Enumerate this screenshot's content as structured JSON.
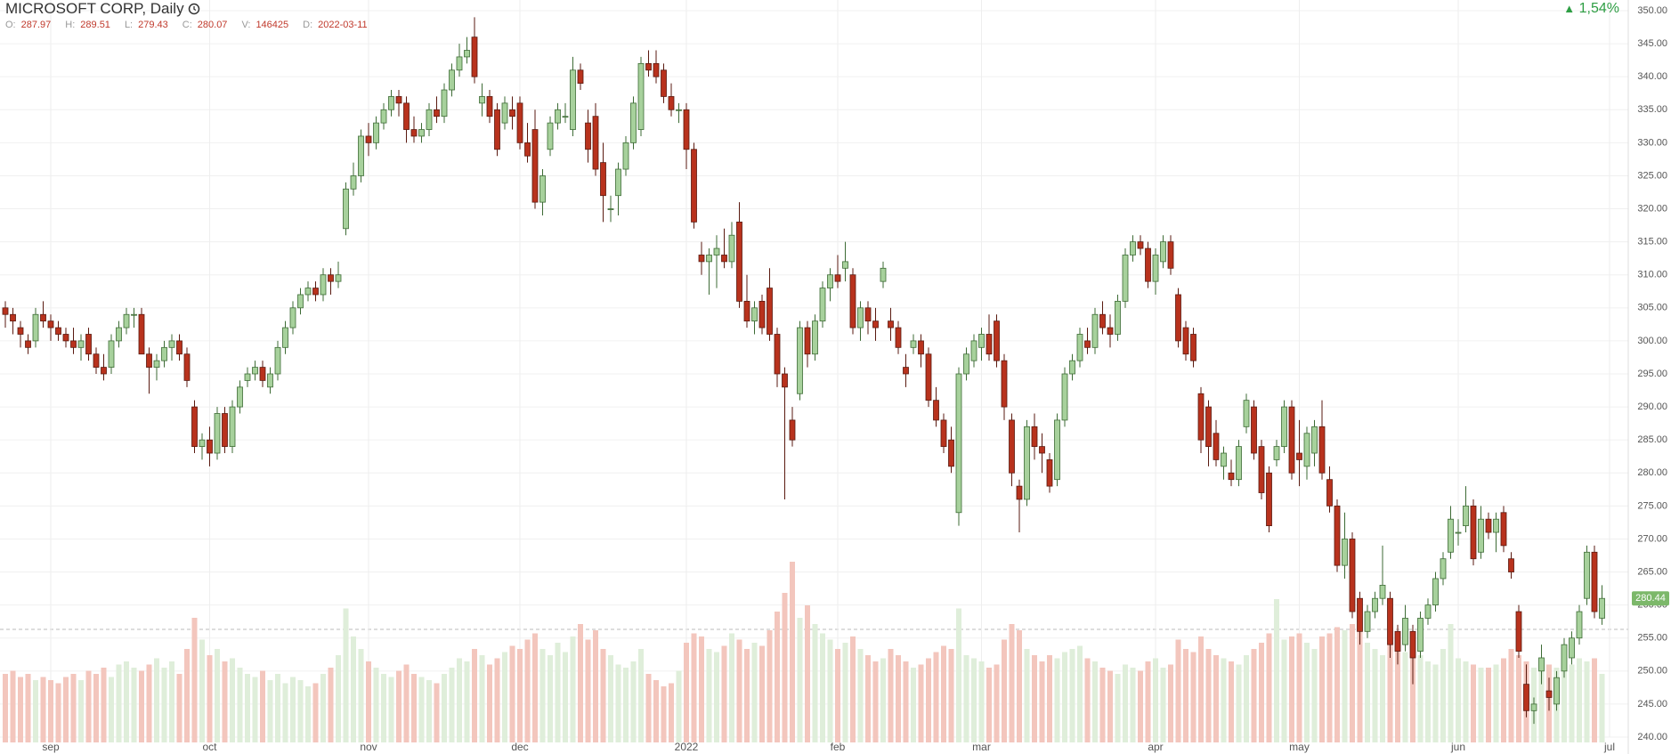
{
  "header": {
    "title": "MICROSOFT CORP, Daily",
    "fields": [
      {
        "label": "O:",
        "value": 287.97
      },
      {
        "label": "H:",
        "value": 289.51
      },
      {
        "label": "L:",
        "value": 279.43
      },
      {
        "label": "C:",
        "value": 280.07
      },
      {
        "label": "V:",
        "value": 146425
      },
      {
        "label": "D:",
        "value": "2022-03-11"
      }
    ],
    "change": "1,54%"
  },
  "chart_data": {
    "type": "candlestick",
    "up_color": "#a7d19c",
    "down_color": "#b8321d",
    "up_volume_color": "#dfeeda",
    "down_volume_color": "#f3c6bd",
    "grid": true,
    "last_price_label": 280.44,
    "ylim": [
      240,
      350
    ],
    "yticks": [
      {
        "value": 240,
        "label": "240.00"
      },
      {
        "value": 245,
        "label": "245.00"
      },
      {
        "value": 250,
        "label": "250.00"
      },
      {
        "value": 255,
        "label": "255.00"
      },
      {
        "value": 260,
        "label": "260.00"
      },
      {
        "value": 265,
        "label": "265.00"
      },
      {
        "value": 270,
        "label": "270.00"
      },
      {
        "value": 275,
        "label": "275.00"
      },
      {
        "value": 280,
        "label": "280.00"
      },
      {
        "value": 285,
        "label": "285.00"
      },
      {
        "value": 290,
        "label": "290.00"
      },
      {
        "value": 295,
        "label": "295.00"
      },
      {
        "value": 300,
        "label": "300.00"
      },
      {
        "value": 305,
        "label": "305.00"
      },
      {
        "value": 310,
        "label": "310.00"
      },
      {
        "value": 315,
        "label": "315.00"
      },
      {
        "value": 320,
        "label": "320.00"
      },
      {
        "value": 325,
        "label": "325.00"
      },
      {
        "value": 330,
        "label": "330.00"
      },
      {
        "value": 335,
        "label": "335.00"
      },
      {
        "value": 340,
        "label": "340.00"
      },
      {
        "value": 345,
        "label": "345.00"
      },
      {
        "value": 350,
        "label": "350.00"
      }
    ],
    "xticks": [
      {
        "value": 6,
        "label": "sep"
      },
      {
        "value": 27,
        "label": "oct"
      },
      {
        "value": 48,
        "label": "nov"
      },
      {
        "value": 68,
        "label": "dec"
      },
      {
        "value": 90,
        "label": "2022"
      },
      {
        "value": 110,
        "label": "feb"
      },
      {
        "value": 129,
        "label": "mar"
      },
      {
        "value": 152,
        "label": "apr"
      },
      {
        "value": 171,
        "label": "may"
      },
      {
        "value": 192,
        "label": "jun"
      },
      {
        "value": 212,
        "label": "jul"
      }
    ],
    "ohlc": [
      [
        305,
        306,
        302,
        304
      ],
      [
        304,
        305,
        301,
        303
      ],
      [
        302,
        303,
        299,
        301
      ],
      [
        300,
        301,
        298,
        299
      ],
      [
        300,
        305,
        299,
        304
      ],
      [
        304,
        306,
        302,
        303
      ],
      [
        303,
        304,
        300,
        302
      ],
      [
        302,
        303,
        300,
        301
      ],
      [
        301,
        302,
        299,
        300
      ],
      [
        300,
        302,
        298,
        299
      ],
      [
        299,
        301,
        297,
        300
      ],
      [
        301,
        302,
        297,
        298
      ],
      [
        298,
        299,
        295,
        296
      ],
      [
        296,
        298,
        294,
        295
      ],
      [
        296,
        301,
        295,
        300
      ],
      [
        300,
        303,
        299,
        302
      ],
      [
        302,
        305,
        301,
        304
      ],
      [
        304,
        305,
        302,
        304
      ],
      [
        304,
        305,
        299,
        298
      ],
      [
        298,
        299,
        292,
        296
      ],
      [
        296,
        298,
        294,
        297
      ],
      [
        297,
        300,
        296,
        299
      ],
      [
        299,
        301,
        297,
        300
      ],
      [
        300,
        301,
        297,
        298
      ],
      [
        298,
        299,
        293,
        294
      ],
      [
        290,
        291,
        283,
        284
      ],
      [
        284,
        286,
        282,
        285
      ],
      [
        285,
        287,
        281,
        283
      ],
      [
        283,
        290,
        282,
        289
      ],
      [
        289,
        290,
        283,
        284
      ],
      [
        284,
        291,
        283,
        290
      ],
      [
        290,
        294,
        289,
        293
      ],
      [
        294,
        296,
        293,
        295
      ],
      [
        295,
        297,
        294,
        296
      ],
      [
        296,
        297,
        293,
        294
      ],
      [
        293,
        296,
        292,
        295
      ],
      [
        295,
        300,
        294,
        299
      ],
      [
        299,
        303,
        298,
        302
      ],
      [
        302,
        306,
        301,
        305
      ],
      [
        305,
        308,
        304,
        307
      ],
      [
        307,
        309,
        306,
        308
      ],
      [
        308,
        309,
        306,
        307
      ],
      [
        307,
        311,
        306,
        310
      ],
      [
        310,
        311,
        307,
        309
      ],
      [
        309,
        312,
        308,
        310
      ],
      [
        317,
        324,
        316,
        323
      ],
      [
        323,
        327,
        322,
        325
      ],
      [
        325,
        332,
        324,
        331
      ],
      [
        331,
        333,
        328,
        330
      ],
      [
        330,
        334,
        329,
        333
      ],
      [
        333,
        336,
        332,
        335
      ],
      [
        335,
        338,
        334,
        337
      ],
      [
        337,
        338,
        334,
        336
      ],
      [
        336,
        337,
        330,
        332
      ],
      [
        332,
        334,
        330,
        331
      ],
      [
        331,
        333,
        330,
        332
      ],
      [
        332,
        336,
        331,
        335
      ],
      [
        335,
        337,
        333,
        334
      ],
      [
        334,
        339,
        333,
        338
      ],
      [
        338,
        342,
        337,
        341
      ],
      [
        341,
        345,
        340,
        343
      ],
      [
        343,
        346,
        342,
        344
      ],
      [
        346,
        349,
        339,
        340
      ],
      [
        336,
        339,
        334,
        337
      ],
      [
        337,
        338,
        333,
        334
      ],
      [
        335,
        336,
        328,
        329
      ],
      [
        333,
        337,
        332,
        336
      ],
      [
        335,
        337,
        332,
        334
      ],
      [
        336,
        337,
        329,
        330
      ],
      [
        330,
        333,
        327,
        328
      ],
      [
        332,
        335,
        320,
        321
      ],
      [
        321,
        326,
        319,
        325
      ],
      [
        329,
        334,
        328,
        333
      ],
      [
        333,
        336,
        332,
        335
      ],
      [
        334,
        336,
        333,
        334
      ],
      [
        332,
        343,
        331,
        341
      ],
      [
        341,
        342,
        338,
        339
      ],
      [
        333,
        335,
        327,
        329
      ],
      [
        334,
        336,
        325,
        326
      ],
      [
        327,
        330,
        318,
        322
      ],
      [
        320,
        322,
        318,
        320
      ],
      [
        322,
        327,
        319,
        326
      ],
      [
        326,
        331,
        325,
        330
      ],
      [
        330,
        337,
        329,
        336
      ],
      [
        332,
        343,
        331,
        342
      ],
      [
        342,
        344,
        340,
        341
      ],
      [
        342,
        344,
        339,
        340
      ],
      [
        341,
        342,
        336,
        337
      ],
      [
        337,
        339,
        334,
        335
      ],
      [
        335,
        336,
        333,
        335
      ],
      [
        335,
        336,
        326,
        329
      ],
      [
        329,
        330,
        317,
        318
      ],
      [
        313,
        315,
        310,
        312
      ],
      [
        312,
        314,
        307,
        313
      ],
      [
        313,
        316,
        308,
        314
      ],
      [
        313,
        317,
        311,
        312
      ],
      [
        312,
        318,
        311,
        316
      ],
      [
        318,
        321,
        305,
        306
      ],
      [
        306,
        310,
        302,
        303
      ],
      [
        303,
        306,
        301,
        305
      ],
      [
        306,
        307,
        301,
        302
      ],
      [
        308,
        311,
        300,
        301
      ],
      [
        301,
        302,
        293,
        295
      ],
      [
        295,
        296,
        276,
        293
      ],
      [
        288,
        290,
        284,
        285
      ],
      [
        292,
        303,
        291,
        302
      ],
      [
        302,
        303,
        296,
        298
      ],
      [
        298,
        304,
        297,
        303
      ],
      [
        303,
        309,
        302,
        308
      ],
      [
        308,
        311,
        306,
        310
      ],
      [
        310,
        313,
        308,
        309
      ],
      [
        311,
        315,
        309,
        312
      ],
      [
        310,
        311,
        301,
        302
      ],
      [
        302,
        306,
        300,
        305
      ],
      [
        305,
        306,
        301,
        303
      ],
      [
        303,
        305,
        300,
        302
      ],
      [
        309,
        312,
        308,
        311
      ],
      [
        303,
        305,
        300,
        302
      ],
      [
        302,
        303,
        298,
        299
      ],
      [
        296,
        298,
        293,
        295
      ],
      [
        299,
        301,
        298,
        300
      ],
      [
        300,
        301,
        296,
        298
      ],
      [
        298,
        299,
        290,
        291
      ],
      [
        291,
        293,
        287,
        288
      ],
      [
        288,
        289,
        283,
        284
      ],
      [
        285,
        287,
        280,
        281
      ],
      [
        274,
        296,
        272,
        295
      ],
      [
        295,
        299,
        294,
        298
      ],
      [
        297,
        301,
        296,
        300
      ],
      [
        299,
        302,
        297,
        301
      ],
      [
        301,
        304,
        297,
        298
      ],
      [
        303,
        304,
        296,
        297
      ],
      [
        297,
        298,
        288,
        290
      ],
      [
        288,
        289,
        278,
        280
      ],
      [
        278,
        279,
        271,
        276
      ],
      [
        276,
        288,
        275,
        287
      ],
      [
        287,
        289,
        282,
        284
      ],
      [
        284,
        286,
        280,
        283
      ],
      [
        282,
        283,
        277,
        278
      ],
      [
        279,
        289,
        278,
        288
      ],
      [
        288,
        296,
        287,
        295
      ],
      [
        295,
        298,
        294,
        297
      ],
      [
        297,
        302,
        296,
        301
      ],
      [
        300,
        302,
        298,
        299
      ],
      [
        299,
        305,
        298,
        304
      ],
      [
        304,
        306,
        301,
        302
      ],
      [
        302,
        304,
        299,
        301
      ],
      [
        301,
        307,
        300,
        306
      ],
      [
        306,
        314,
        305,
        313
      ],
      [
        313,
        316,
        312,
        315
      ],
      [
        315,
        316,
        313,
        314
      ],
      [
        314,
        315,
        308,
        309
      ],
      [
        309,
        314,
        307,
        313
      ],
      [
        312,
        316,
        311,
        315
      ],
      [
        315,
        316,
        310,
        311
      ],
      [
        307,
        308,
        299,
        300
      ],
      [
        302,
        303,
        297,
        298
      ],
      [
        301,
        302,
        296,
        297
      ],
      [
        292,
        293,
        283,
        285
      ],
      [
        290,
        291,
        281,
        284
      ],
      [
        286,
        288,
        281,
        282
      ],
      [
        281,
        284,
        279,
        283
      ],
      [
        280,
        282,
        278,
        279
      ],
      [
        279,
        285,
        278,
        284
      ],
      [
        287,
        292,
        286,
        291
      ],
      [
        290,
        291,
        282,
        283
      ],
      [
        284,
        285,
        276,
        277
      ],
      [
        280,
        281,
        271,
        272
      ],
      [
        282,
        285,
        281,
        284
      ],
      [
        284,
        291,
        283,
        290
      ],
      [
        290,
        291,
        279,
        280
      ],
      [
        283,
        288,
        278,
        282
      ],
      [
        281,
        287,
        279,
        286
      ],
      [
        283,
        288,
        281,
        287
      ],
      [
        287,
        291,
        279,
        280
      ],
      [
        279,
        281,
        274,
        275
      ],
      [
        275,
        276,
        265,
        266
      ],
      [
        266,
        274,
        264,
        270
      ],
      [
        270,
        271,
        258,
        259
      ],
      [
        261,
        262,
        254,
        256
      ],
      [
        256,
        260,
        255,
        259
      ],
      [
        259,
        262,
        258,
        261
      ],
      [
        261,
        269,
        260,
        263
      ],
      [
        261,
        262,
        252,
        254
      ],
      [
        256,
        257,
        251,
        253
      ],
      [
        254,
        260,
        253,
        258
      ],
      [
        256,
        257,
        248,
        252
      ],
      [
        253,
        259,
        252,
        258
      ],
      [
        258,
        261,
        257,
        260
      ],
      [
        260,
        265,
        259,
        264
      ],
      [
        264,
        268,
        263,
        267
      ],
      [
        268,
        275,
        267,
        273
      ],
      [
        271,
        273,
        269,
        271
      ],
      [
        272,
        278,
        271,
        275
      ],
      [
        275,
        276,
        266,
        267
      ],
      [
        268,
        275,
        267,
        273
      ],
      [
        273,
        274,
        270,
        271
      ],
      [
        271,
        274,
        268,
        273
      ],
      [
        274,
        275,
        268,
        269
      ],
      [
        267,
        268,
        264,
        265
      ],
      [
        259,
        260,
        252,
        253
      ],
      [
        248,
        251,
        243,
        244
      ],
      [
        244,
        246,
        242,
        245
      ],
      [
        250,
        254,
        248,
        252
      ],
      [
        247,
        249,
        244,
        246
      ],
      [
        245,
        250,
        244,
        249
      ],
      [
        250,
        255,
        249,
        254
      ],
      [
        252,
        256,
        251,
        255
      ],
      [
        255,
        260,
        254,
        259
      ],
      [
        261,
        269,
        260,
        268
      ],
      [
        268,
        269,
        258,
        259
      ],
      [
        258,
        263,
        257,
        261
      ]
    ],
    "volume": [
      22,
      23,
      21,
      22,
      20,
      21,
      20,
      19,
      21,
      22,
      20,
      23,
      22,
      24,
      21,
      25,
      26,
      24,
      23,
      25,
      27,
      24,
      26,
      22,
      30,
      40,
      33,
      28,
      30,
      26,
      27,
      24,
      22,
      21,
      23,
      20,
      22,
      19,
      21,
      20,
      18,
      19,
      22,
      24,
      28,
      43,
      34,
      30,
      26,
      24,
      22,
      21,
      23,
      25,
      22,
      21,
      20,
      19,
      22,
      24,
      27,
      26,
      30,
      28,
      25,
      27,
      29,
      31,
      30,
      33,
      35,
      30,
      28,
      32,
      29,
      34,
      38,
      33,
      36,
      30,
      28,
      25,
      24,
      26,
      30,
      22,
      20,
      18,
      19,
      23,
      32,
      35,
      34,
      30,
      29,
      31,
      35,
      33,
      30,
      32,
      31,
      36,
      42,
      48,
      58,
      40,
      44,
      38,
      35,
      33,
      30,
      32,
      34,
      30,
      28,
      26,
      27,
      30,
      28,
      26,
      24,
      25,
      27,
      29,
      31,
      30,
      43,
      28,
      27,
      26,
      24,
      25,
      33,
      38,
      36,
      30,
      28,
      26,
      28,
      27,
      29,
      30,
      31,
      27,
      26,
      24,
      23,
      22,
      25,
      24,
      23,
      26,
      27,
      24,
      25,
      33,
      30,
      29,
      34,
      30,
      28,
      27,
      26,
      25,
      28,
      30,
      32,
      35,
      46,
      33,
      34,
      35,
      32,
      30,
      34,
      35,
      37,
      36,
      38,
      36,
      32,
      30,
      28,
      32,
      30,
      29,
      31,
      28,
      26,
      25,
      30,
      38,
      27,
      26,
      25,
      24,
      24,
      25,
      27,
      30,
      28,
      26,
      24,
      23,
      25,
      24,
      26,
      25,
      27,
      26,
      27,
      22
    ]
  }
}
